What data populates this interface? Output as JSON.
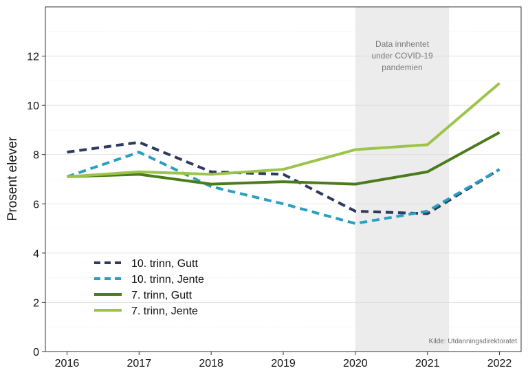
{
  "chart_data": {
    "type": "line",
    "title": "",
    "xlabel": "",
    "ylabel": "Prosent elever",
    "x": [
      2016,
      2017,
      2018,
      2019,
      2020,
      2021,
      2022
    ],
    "x_tick_labels": [
      "2016",
      "2017",
      "2018",
      "2019",
      "2020",
      "2021",
      "2022"
    ],
    "xlim": [
      2015.7,
      2022.3
    ],
    "ylim": [
      0,
      14
    ],
    "y_ticks": [
      0,
      2,
      4,
      6,
      8,
      10,
      12
    ],
    "y_tick_labels": [
      "0",
      "2",
      "4",
      "6",
      "8",
      "10",
      "12"
    ],
    "grid": true,
    "legend_position": "bottom-left",
    "series": [
      {
        "name": "10. trinn, Gutt",
        "color": "#2e3a5f",
        "style": "dashed",
        "values": [
          8.1,
          8.5,
          7.3,
          7.2,
          5.7,
          5.6,
          7.4
        ]
      },
      {
        "name": "10. trinn, Jente",
        "color": "#2a9fc0",
        "style": "dashed",
        "values": [
          7.1,
          8.1,
          6.7,
          6.0,
          5.2,
          5.7,
          7.4
        ]
      },
      {
        "name": "7. trinn, Gutt",
        "color": "#4a7c1c",
        "style": "solid",
        "values": [
          7.1,
          7.2,
          6.8,
          6.9,
          6.8,
          7.3,
          8.9
        ]
      },
      {
        "name": "7. trinn, Jente",
        "color": "#9cc44a",
        "style": "solid",
        "values": [
          7.1,
          7.3,
          7.2,
          7.4,
          8.2,
          8.4,
          10.9
        ]
      }
    ],
    "shaded_region": {
      "x_from": 2020,
      "x_to": 2021.3,
      "color": "#ececec",
      "label_lines": [
        "Data innhentet",
        "under COVID-19",
        "pandemien"
      ]
    },
    "source_note": "Kilde: Utdanningsdirektoratet"
  }
}
